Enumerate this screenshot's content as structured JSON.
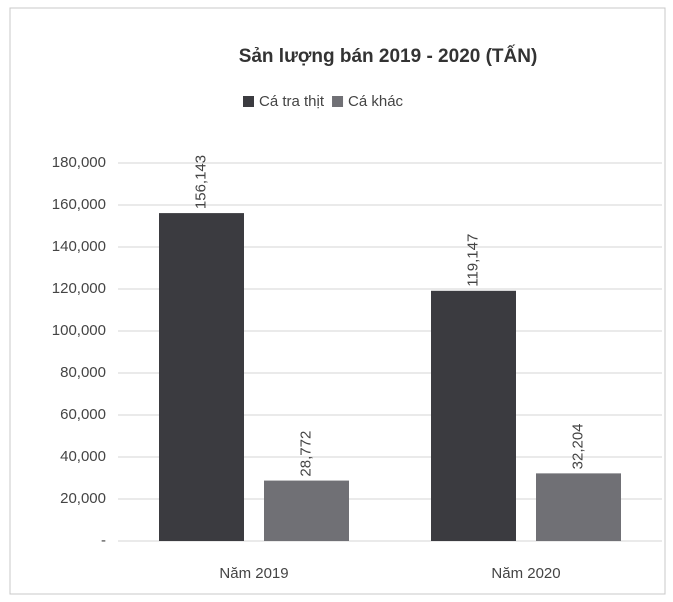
{
  "chart_data": {
    "type": "bar",
    "title": "Sản lượng bán 2019 - 2020 (TẤN)",
    "categories": [
      "Năm 2019",
      "Năm 2020"
    ],
    "series": [
      {
        "name": "Cá tra thịt",
        "color": "#3b3b40",
        "values": [
          156143,
          119147
        ],
        "value_labels": [
          "156,143",
          "119,147"
        ]
      },
      {
        "name": "Cá khác",
        "color": "#707075",
        "values": [
          28772,
          32204
        ],
        "value_labels": [
          "28,772",
          "32,204"
        ]
      }
    ],
    "ylim": [
      0,
      180000
    ],
    "yticks": [
      {
        "value": 0,
        "label": "-"
      },
      {
        "value": 20000,
        "label": "20,000"
      },
      {
        "value": 40000,
        "label": "40,000"
      },
      {
        "value": 60000,
        "label": "60,000"
      },
      {
        "value": 80000,
        "label": "80,000"
      },
      {
        "value": 100000,
        "label": "100,000"
      },
      {
        "value": 120000,
        "label": "120,000"
      },
      {
        "value": 140000,
        "label": "140,000"
      },
      {
        "value": 160000,
        "label": "160,000"
      },
      {
        "value": 180000,
        "label": "180,000"
      }
    ],
    "grid": true,
    "legend": "top"
  }
}
